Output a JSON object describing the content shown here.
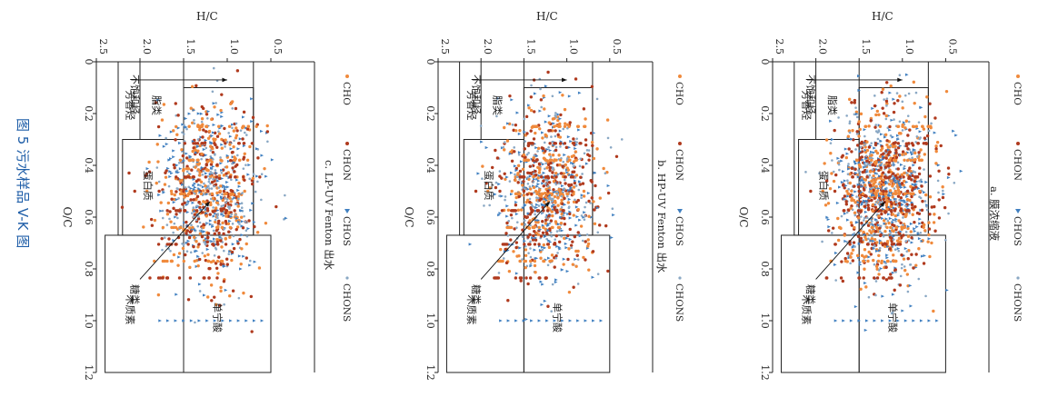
{
  "figure": {
    "caption": "图 5   污水样品 V-K 图"
  },
  "chart_data": [
    {
      "type": "scatter",
      "panel_label": "a. 膜浓缩液",
      "xlabel": "O/C",
      "ylabel": "H/C",
      "xlim": [
        0,
        1.2
      ],
      "ylim": [
        0,
        2.5
      ],
      "x_ticks": [
        "0",
        "0.2",
        "0.4",
        "0.6",
        "0.8",
        "1.0",
        "1.2"
      ],
      "y_ticks": [
        "0.5",
        "1.0",
        "1.5",
        "2.0",
        "2.5"
      ],
      "legend": [
        "CHO",
        "CHON",
        "CHOS",
        "CHONS"
      ],
      "regions": [
        "不饱和烃",
        "脂类",
        "蛋白质",
        "芳香烃",
        "糖类",
        "木质素",
        "单宁酸"
      ],
      "density": "high"
    },
    {
      "type": "scatter",
      "panel_label": "b. HP-UV Fenton 出水",
      "xlabel": "O/C",
      "ylabel": "H/C",
      "xlim": [
        0,
        1.2
      ],
      "ylim": [
        0,
        2.5
      ],
      "x_ticks": [
        "0",
        "0.2",
        "0.4",
        "0.6",
        "0.8",
        "1.0",
        "1.2"
      ],
      "y_ticks": [
        "0.5",
        "1.0",
        "1.5",
        "2.0",
        "2.5"
      ],
      "legend": [
        "CHO",
        "CHON",
        "CHOS",
        "CHONS"
      ],
      "regions": [
        "不饱和烃",
        "脂类",
        "蛋白质",
        "芳香烃",
        "糖类",
        "木质素",
        "单宁酸"
      ],
      "density": "medium"
    },
    {
      "type": "scatter",
      "panel_label": "c. LP-UV Fenton 出水",
      "xlabel": "O/C",
      "ylabel": "H/C",
      "xlim": [
        0,
        1.2
      ],
      "ylim": [
        0,
        2.5
      ],
      "x_ticks": [
        "0",
        "0.2",
        "0.4",
        "0.6",
        "0.8",
        "1.0",
        "1.2"
      ],
      "y_ticks": [
        "0.5",
        "1.0",
        "1.5",
        "2.0",
        "2.5"
      ],
      "legend": [
        "CHO",
        "CHON",
        "CHOS",
        "CHONS"
      ],
      "regions": [
        "不饱和烃",
        "脂类",
        "蛋白质",
        "芳香烃",
        "糖类",
        "木质素",
        "单宁酸"
      ],
      "density": "medium"
    }
  ],
  "colors": {
    "CHO": "#f08a3c",
    "CHON": "#b03a1e",
    "CHOS": "#3f7fc0",
    "CHONS": "#8aa8c4",
    "caption": "#1f5ea8"
  }
}
